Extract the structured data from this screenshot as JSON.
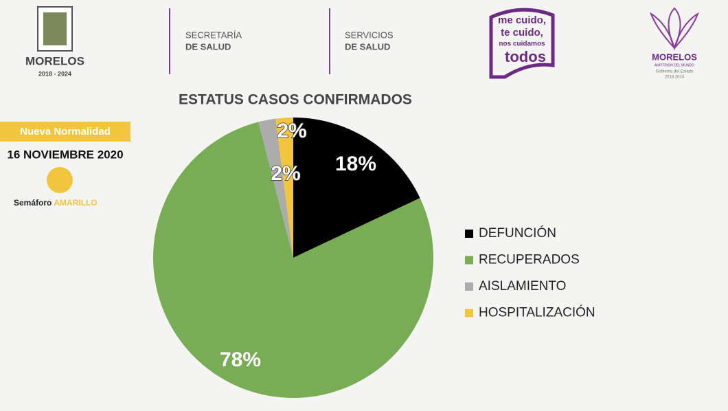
{
  "header": {
    "state_name": "MORELOS",
    "state_years": "2018 - 2024",
    "secretaria_1": "SECRETARÍA",
    "secretaria_2": "DE SALUD",
    "servicios_1": "SERVICIOS",
    "servicios_2": "DE SALUD",
    "campaign_1": "me cuido,",
    "campaign_2": "te cuido,",
    "campaign_3": "nos cuidamos",
    "campaign_4": "todos",
    "gov_name": "MORELOS",
    "gov_motto": "ANFITRIÓN DEL MUNDO",
    "gov_sub": "Gobierno del Estado",
    "gov_years": "2018 2024"
  },
  "sidebar": {
    "badge": "Nueva Normalidad",
    "date": "16 NOVIEMBRE 2020",
    "semaforo": "Semáforo",
    "semaforo_color": "AMARILLO"
  },
  "chart_data": {
    "type": "pie",
    "title": "ESTATUS CASOS CONFIRMADOS",
    "categories": [
      "DEFUNCIÓN",
      "RECUPERADOS",
      "AISLAMIENTO",
      "HOSPITALIZACIÓN"
    ],
    "values": [
      18,
      78,
      2,
      2
    ],
    "value_labels": [
      "18%",
      "78%",
      "2%",
      "2%"
    ],
    "colors": [
      "#000000",
      "#79ad55",
      "#acacac",
      "#f3c53c"
    ],
    "legend": "right"
  }
}
